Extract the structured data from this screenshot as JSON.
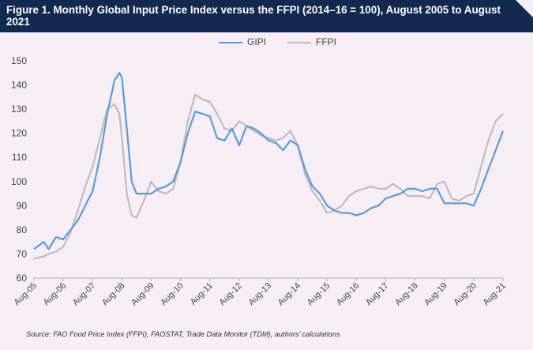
{
  "title": "Figure 1.  Monthly Global Input Price Index versus the FFPI (2014–16 = 100), August 2005 to August 2021",
  "source": "Source: FAO Food Price Index (FFPI), FAOSTAT, Trade Data Monitor (TDM), authors’ calculations",
  "colors": {
    "header": "#14294f",
    "background": "#f7eef5",
    "gipi": "#5b9bd5",
    "ffpi": "#bdbdbd"
  },
  "chart_data": {
    "type": "line",
    "title": "",
    "xlabel": "",
    "ylabel": "",
    "ylim": [
      60,
      150
    ],
    "yticks": [
      60,
      70,
      80,
      90,
      100,
      110,
      120,
      130,
      140,
      150
    ],
    "xticks": [
      "Aug-05",
      "Aug-06",
      "Aug-07",
      "Aug-08",
      "Aug-09",
      "Aug-10",
      "Aug-11",
      "Aug-12",
      "Aug-13",
      "Aug-14",
      "Aug-15",
      "Aug-16",
      "Aug-17",
      "Aug-18",
      "Aug-19",
      "Aug-20",
      "Aug-21"
    ],
    "grid": false,
    "legend": "top-center",
    "series": [
      {
        "name": "GIPI",
        "color": "#5b9bd5",
        "x": [
          "2005-08",
          "2005-12",
          "2006-02",
          "2006-05",
          "2006-08",
          "2006-11",
          "2007-02",
          "2007-05",
          "2007-08",
          "2007-11",
          "2008-02",
          "2008-05",
          "2008-07",
          "2008-08",
          "2008-10",
          "2008-12",
          "2009-02",
          "2009-05",
          "2009-08",
          "2009-11",
          "2010-02",
          "2010-05",
          "2010-08",
          "2010-11",
          "2011-02",
          "2011-05",
          "2011-08",
          "2011-11",
          "2012-02",
          "2012-05",
          "2012-08",
          "2012-11",
          "2013-02",
          "2013-05",
          "2013-08",
          "2013-11",
          "2014-02",
          "2014-05",
          "2014-08",
          "2014-11",
          "2015-02",
          "2015-05",
          "2015-08",
          "2015-11",
          "2016-02",
          "2016-05",
          "2016-08",
          "2016-11",
          "2017-02",
          "2017-05",
          "2017-08",
          "2017-11",
          "2018-02",
          "2018-05",
          "2018-08",
          "2018-11",
          "2019-02",
          "2019-05",
          "2019-08",
          "2019-11",
          "2020-02",
          "2020-05",
          "2020-08",
          "2020-11",
          "2021-02",
          "2021-05",
          "2021-08"
        ],
        "y": [
          72,
          75,
          72,
          77,
          76,
          80,
          84,
          90,
          96,
          110,
          128,
          142,
          145,
          143,
          122,
          100,
          95,
          95,
          95,
          97,
          98,
          100,
          108,
          120,
          129,
          128,
          127,
          118,
          117,
          122,
          115,
          123,
          122,
          120,
          117,
          116,
          113,
          117,
          115,
          105,
          98,
          95,
          90,
          88,
          87,
          87,
          86,
          87,
          89,
          90,
          93,
          94,
          95,
          97,
          97,
          96,
          97,
          97,
          91,
          91,
          91,
          91,
          90,
          97,
          105,
          113,
          121
        ]
      },
      {
        "name": "FFPI",
        "color": "#bdbdbd",
        "x": [
          "2005-08",
          "2005-12",
          "2006-02",
          "2006-05",
          "2006-08",
          "2006-11",
          "2007-02",
          "2007-05",
          "2007-08",
          "2007-11",
          "2008-02",
          "2008-05",
          "2008-07",
          "2008-08",
          "2008-10",
          "2008-12",
          "2009-02",
          "2009-05",
          "2009-08",
          "2009-11",
          "2010-02",
          "2010-05",
          "2010-08",
          "2010-11",
          "2011-02",
          "2011-05",
          "2011-08",
          "2011-11",
          "2012-02",
          "2012-05",
          "2012-08",
          "2012-11",
          "2013-02",
          "2013-05",
          "2013-08",
          "2013-11",
          "2014-02",
          "2014-05",
          "2014-08",
          "2014-11",
          "2015-02",
          "2015-05",
          "2015-08",
          "2015-11",
          "2016-02",
          "2016-05",
          "2016-08",
          "2016-11",
          "2017-02",
          "2017-05",
          "2017-08",
          "2017-11",
          "2018-02",
          "2018-05",
          "2018-08",
          "2018-11",
          "2019-02",
          "2019-05",
          "2019-08",
          "2019-11",
          "2020-02",
          "2020-05",
          "2020-08",
          "2020-11",
          "2021-02",
          "2021-05",
          "2021-08"
        ],
        "y": [
          68,
          69,
          70,
          71,
          73,
          79,
          88,
          98,
          106,
          118,
          130,
          132,
          128,
          118,
          95,
          86,
          85,
          92,
          100,
          96,
          95,
          97,
          108,
          125,
          136,
          134,
          133,
          128,
          122,
          121,
          125,
          123,
          121,
          119,
          118,
          117,
          118,
          121,
          115,
          103,
          96,
          92,
          87,
          88,
          90,
          94,
          96,
          97,
          98,
          97,
          97,
          99,
          97,
          94,
          94,
          94,
          93,
          99,
          100,
          93,
          92,
          94,
          95,
          106,
          117,
          125,
          128
        ]
      }
    ]
  }
}
